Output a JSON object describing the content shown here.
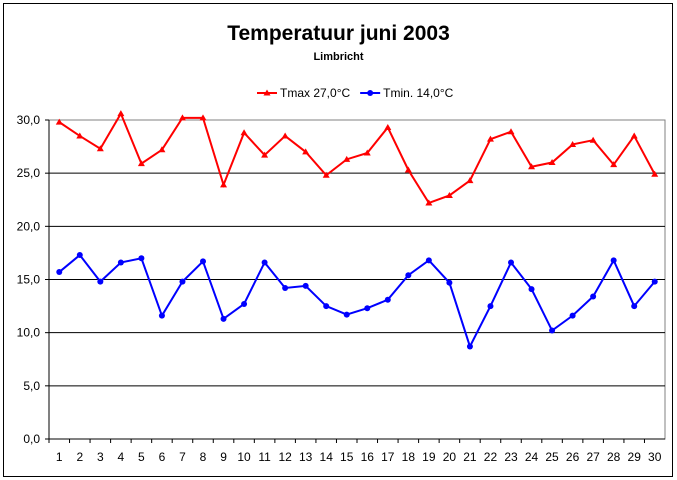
{
  "chart_data": {
    "type": "line",
    "title": "Temperatuur juni 2003",
    "subtitle": "Limbricht",
    "xlabel": "",
    "ylabel": "",
    "ylim": [
      0,
      30
    ],
    "yticks": [
      "0,0",
      "5,0",
      "10,0",
      "15,0",
      "20,0",
      "25,0",
      "30,0"
    ],
    "grid": true,
    "legend_position": "top",
    "categories": [
      "1",
      "2",
      "3",
      "4",
      "5",
      "6",
      "7",
      "8",
      "9",
      "10",
      "11",
      "12",
      "13",
      "14",
      "15",
      "16",
      "17",
      "18",
      "19",
      "20",
      "21",
      "22",
      "23",
      "24",
      "25",
      "26",
      "27",
      "28",
      "29",
      "30"
    ],
    "series": [
      {
        "name": "Tmax 27,0°C",
        "color": "#ff0000",
        "marker": "triangle",
        "values": [
          29.8,
          28.5,
          27.3,
          30.6,
          25.9,
          27.2,
          30.2,
          30.2,
          23.9,
          28.8,
          26.7,
          28.5,
          27.0,
          24.8,
          26.3,
          26.9,
          29.3,
          25.3,
          22.2,
          22.9,
          24.3,
          28.2,
          28.9,
          25.6,
          26.0,
          27.7,
          28.1,
          25.8,
          28.5,
          24.9
        ]
      },
      {
        "name": "Tmin. 14,0°C",
        "color": "#0000ff",
        "marker": "circle",
        "values": [
          15.7,
          17.3,
          14.8,
          16.6,
          17.0,
          11.6,
          14.8,
          16.7,
          11.3,
          12.7,
          16.6,
          14.2,
          14.4,
          12.5,
          11.7,
          12.3,
          13.1,
          15.4,
          16.8,
          14.7,
          8.7,
          12.5,
          16.6,
          14.1,
          10.2,
          11.6,
          13.4,
          16.8,
          12.5,
          14.8
        ]
      }
    ]
  }
}
